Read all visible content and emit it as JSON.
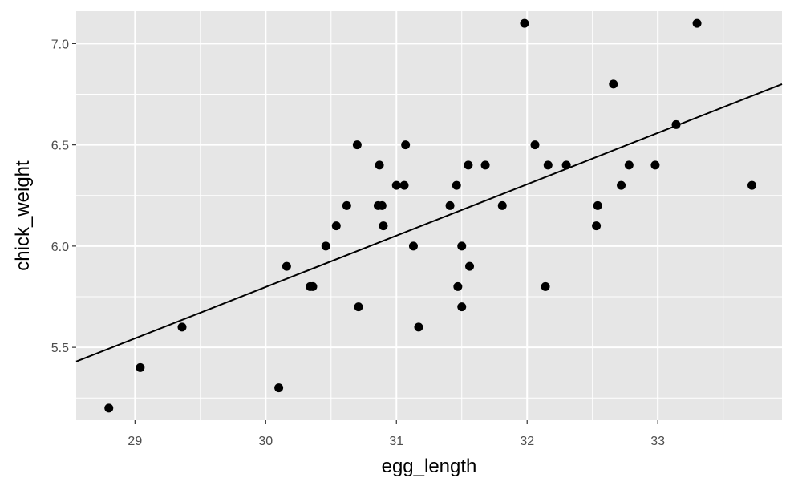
{
  "chart_data": {
    "type": "scatter",
    "xlabel": "egg_length",
    "ylabel": "chick_weight",
    "xlim": [
      28.55,
      33.95
    ],
    "ylim": [
      5.14,
      7.16
    ],
    "x_ticks": [
      29,
      30,
      31,
      32,
      33
    ],
    "x_tick_labels": [
      "29",
      "30",
      "31",
      "32",
      "33"
    ],
    "y_ticks": [
      5.5,
      6.0,
      6.5,
      7.0
    ],
    "y_tick_labels": [
      "5.5",
      "6.0",
      "6.5",
      "7.0"
    ],
    "grid": true,
    "legend": "none",
    "colors": {
      "panel": "#e6e6e6",
      "grid": "#ffffff",
      "point": "#000000",
      "line": "#000000"
    },
    "points": [
      {
        "x": 28.8,
        "y": 5.2
      },
      {
        "x": 29.04,
        "y": 5.4
      },
      {
        "x": 29.36,
        "y": 5.6
      },
      {
        "x": 30.1,
        "y": 5.3
      },
      {
        "x": 30.16,
        "y": 5.9
      },
      {
        "x": 30.34,
        "y": 5.8
      },
      {
        "x": 30.36,
        "y": 5.8
      },
      {
        "x": 30.46,
        "y": 6.0
      },
      {
        "x": 30.54,
        "y": 6.1
      },
      {
        "x": 30.62,
        "y": 6.2
      },
      {
        "x": 30.7,
        "y": 6.5
      },
      {
        "x": 30.71,
        "y": 5.7
      },
      {
        "x": 30.86,
        "y": 6.2
      },
      {
        "x": 30.87,
        "y": 6.4
      },
      {
        "x": 30.89,
        "y": 6.2
      },
      {
        "x": 30.9,
        "y": 6.1
      },
      {
        "x": 31.0,
        "y": 6.3
      },
      {
        "x": 31.06,
        "y": 6.3
      },
      {
        "x": 31.07,
        "y": 6.5
      },
      {
        "x": 31.13,
        "y": 6.0
      },
      {
        "x": 31.17,
        "y": 5.6
      },
      {
        "x": 31.41,
        "y": 6.2
      },
      {
        "x": 31.46,
        "y": 6.3
      },
      {
        "x": 31.47,
        "y": 5.8
      },
      {
        "x": 31.5,
        "y": 5.7
      },
      {
        "x": 31.5,
        "y": 6.0
      },
      {
        "x": 31.55,
        "y": 6.4
      },
      {
        "x": 31.56,
        "y": 5.9
      },
      {
        "x": 31.68,
        "y": 6.4
      },
      {
        "x": 31.81,
        "y": 6.2
      },
      {
        "x": 31.98,
        "y": 7.1
      },
      {
        "x": 32.06,
        "y": 6.5
      },
      {
        "x": 32.14,
        "y": 5.8
      },
      {
        "x": 32.16,
        "y": 6.4
      },
      {
        "x": 32.3,
        "y": 6.4
      },
      {
        "x": 32.53,
        "y": 6.1
      },
      {
        "x": 32.54,
        "y": 6.2
      },
      {
        "x": 32.66,
        "y": 6.8
      },
      {
        "x": 32.72,
        "y": 6.3
      },
      {
        "x": 32.78,
        "y": 6.4
      },
      {
        "x": 32.98,
        "y": 6.4
      },
      {
        "x": 33.14,
        "y": 6.6
      },
      {
        "x": 33.3,
        "y": 7.1
      },
      {
        "x": 33.72,
        "y": 6.3
      }
    ],
    "fit_line": {
      "x": [
        28.55,
        33.95
      ],
      "y": [
        5.43,
        6.8
      ]
    }
  }
}
